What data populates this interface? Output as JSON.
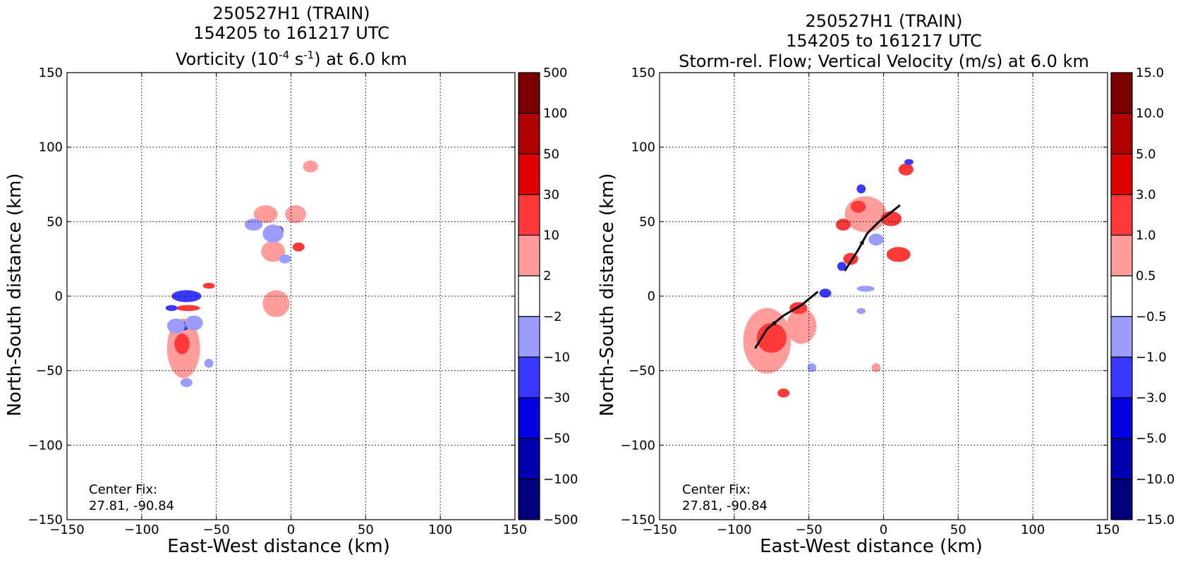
{
  "chart_data": [
    {
      "type": "heatmap",
      "title_lines": [
        "250527H1 (TRAIN)",
        "154205 to 161217 UTC"
      ],
      "field_title": {
        "pre": "Vorticity (10",
        "exp1": "-4",
        "mid": " s",
        "exp2": "-1",
        "post": ") at 6.0 km"
      },
      "xlabel": "East-West distance (km)",
      "ylabel": "North-South distance (km)",
      "xlim": [
        -150,
        150
      ],
      "ylim": [
        -150,
        150
      ],
      "xticks": [
        "−150",
        "−100",
        "−50",
        "0",
        "50",
        "100",
        "150"
      ],
      "yticks": [
        "−150",
        "−100",
        "−50",
        "0",
        "50",
        "100",
        "150"
      ],
      "grid": true,
      "annotation": [
        "Center Fix:",
        "27.81, -90.84"
      ],
      "colorbar": {
        "levels": [
          "500",
          "100",
          "50",
          "30",
          "10",
          "2",
          "−2",
          "−10",
          "−30",
          "−50",
          "−100",
          "−500"
        ],
        "colors": [
          "#7a0000",
          "#b00000",
          "#e00000",
          "#ff3838",
          "#ff9c9c",
          "#ffffff",
          "#9c9cff",
          "#3838ff",
          "#0000e0",
          "#0000b0",
          "#00007a"
        ]
      },
      "regions": [
        {
          "level": 4,
          "x": 13,
          "y": 87,
          "rx": 5,
          "ry": 4
        },
        {
          "level": 4,
          "x": -17,
          "y": 55,
          "rx": 8,
          "ry": 6
        },
        {
          "level": 4,
          "x": 3,
          "y": 55,
          "rx": 7,
          "ry": 6
        },
        {
          "level": 4,
          "x": -12,
          "y": 30,
          "rx": 8,
          "ry": 7
        },
        {
          "level": 4,
          "x": -10,
          "y": -5,
          "rx": 9,
          "ry": 9
        },
        {
          "level": 4,
          "x": -72,
          "y": -35,
          "rx": 11,
          "ry": 20
        },
        {
          "level": 3,
          "x": -73,
          "y": -32,
          "rx": 5,
          "ry": 7
        },
        {
          "level": 3,
          "x": -69,
          "y": -8,
          "rx": 8,
          "ry": 2
        },
        {
          "level": 3,
          "x": 5,
          "y": 33,
          "rx": 4,
          "ry": 3
        },
        {
          "level": 3,
          "x": -55,
          "y": 7,
          "rx": 4,
          "ry": 2
        },
        {
          "level": 7,
          "x": -70,
          "y": 0,
          "rx": 10,
          "ry": 4
        },
        {
          "level": 7,
          "x": -80,
          "y": -8,
          "rx": 4,
          "ry": 2
        },
        {
          "level": 7,
          "x": -72,
          "y": -20,
          "rx": 4,
          "ry": 3
        },
        {
          "level": 7,
          "x": -8,
          "y": 44,
          "rx": 3,
          "ry": 3
        },
        {
          "level": 6,
          "x": -77,
          "y": -20,
          "rx": 6,
          "ry": 5
        },
        {
          "level": 6,
          "x": -65,
          "y": -18,
          "rx": 6,
          "ry": 5
        },
        {
          "level": 6,
          "x": -25,
          "y": 48,
          "rx": 6,
          "ry": 4
        },
        {
          "level": 6,
          "x": -12,
          "y": 42,
          "rx": 7,
          "ry": 6
        },
        {
          "level": 6,
          "x": -4,
          "y": 25,
          "rx": 4,
          "ry": 3
        },
        {
          "level": 6,
          "x": -70,
          "y": -58,
          "rx": 4,
          "ry": 3
        },
        {
          "level": 6,
          "x": -55,
          "y": -45,
          "rx": 3,
          "ry": 3
        }
      ]
    },
    {
      "type": "heatmap",
      "title_lines": [
        "250527H1 (TRAIN)",
        "154205 to 161217 UTC"
      ],
      "field_title": {
        "pre": "Storm-rel. Flow; Vertical Velocity (m/s) at 6.0 km",
        "exp1": "",
        "mid": "",
        "exp2": "",
        "post": ""
      },
      "xlabel": "East-West distance (km)",
      "ylabel": "North-South distance (km)",
      "xlim": [
        -150,
        150
      ],
      "ylim": [
        -150,
        150
      ],
      "xticks": [
        "−150",
        "−100",
        "−50",
        "0",
        "50",
        "100",
        "150"
      ],
      "yticks": [
        "−150",
        "−100",
        "−50",
        "0",
        "50",
        "100",
        "150"
      ],
      "grid": true,
      "annotation": [
        "Center Fix:",
        "27.81, -90.84"
      ],
      "colorbar": {
        "levels": [
          "15.0",
          "10.0",
          "5.0",
          "3.0",
          "1.0",
          "0.5",
          "−0.5",
          "−1.0",
          "−3.0",
          "−5.0",
          "−10.0",
          "−15.0"
        ],
        "colors": [
          "#7a0000",
          "#b00000",
          "#e00000",
          "#ff3838",
          "#ff9c9c",
          "#ffffff",
          "#9c9cff",
          "#3838ff",
          "#0000e0",
          "#0000b0",
          "#00007a"
        ]
      },
      "regions": [
        {
          "level": 4,
          "x": -78,
          "y": -30,
          "rx": 16,
          "ry": 22
        },
        {
          "level": 4,
          "x": -55,
          "y": -20,
          "rx": 10,
          "ry": 12
        },
        {
          "level": 3,
          "x": -75,
          "y": -28,
          "rx": 10,
          "ry": 10
        },
        {
          "level": 3,
          "x": -57,
          "y": -8,
          "rx": 6,
          "ry": 4
        },
        {
          "level": 3,
          "x": -67,
          "y": -65,
          "rx": 4,
          "ry": 3
        },
        {
          "level": 4,
          "x": -12,
          "y": 55,
          "rx": 14,
          "ry": 12
        },
        {
          "level": 3,
          "x": -27,
          "y": 48,
          "rx": 5,
          "ry": 4
        },
        {
          "level": 3,
          "x": -17,
          "y": 60,
          "rx": 5,
          "ry": 4
        },
        {
          "level": 3,
          "x": 5,
          "y": 52,
          "rx": 7,
          "ry": 5
        },
        {
          "level": 3,
          "x": 10,
          "y": 28,
          "rx": 8,
          "ry": 5
        },
        {
          "level": 3,
          "x": -22,
          "y": 25,
          "rx": 5,
          "ry": 4
        },
        {
          "level": 3,
          "x": 15,
          "y": 85,
          "rx": 5,
          "ry": 4
        },
        {
          "level": 4,
          "x": -5,
          "y": -48,
          "rx": 3,
          "ry": 3
        },
        {
          "level": 7,
          "x": -15,
          "y": 72,
          "rx": 3,
          "ry": 3
        },
        {
          "level": 7,
          "x": -39,
          "y": 2,
          "rx": 4,
          "ry": 3
        },
        {
          "level": 7,
          "x": -28,
          "y": 20,
          "rx": 3,
          "ry": 3
        },
        {
          "level": 7,
          "x": 17,
          "y": 90,
          "rx": 3,
          "ry": 2
        },
        {
          "level": 6,
          "x": -12,
          "y": 5,
          "rx": 6,
          "ry": 2
        },
        {
          "level": 6,
          "x": -5,
          "y": 38,
          "rx": 5,
          "ry": 4
        },
        {
          "level": 6,
          "x": -15,
          "y": -10,
          "rx": 3,
          "ry": 2
        },
        {
          "level": 6,
          "x": -48,
          "y": -48,
          "rx": 3,
          "ry": 3
        }
      ],
      "flow": [
        [
          [
            -86,
            -35
          ],
          [
            -78,
            -22
          ],
          [
            -67,
            -13
          ],
          [
            -55,
            -6
          ],
          [
            -44,
            3
          ]
        ],
        [
          [
            -26,
            17
          ],
          [
            -17,
            31
          ],
          [
            -11,
            42
          ],
          [
            -3,
            50
          ],
          [
            11,
            61
          ]
        ]
      ]
    }
  ]
}
